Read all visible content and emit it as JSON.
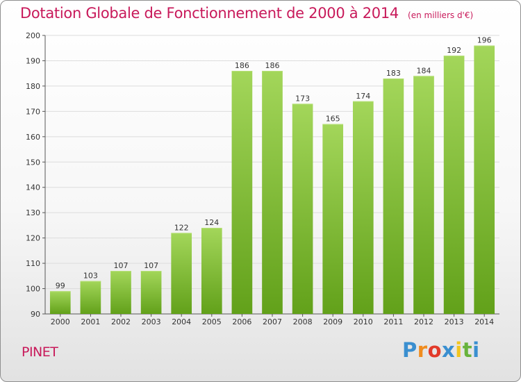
{
  "title": "Dotation Globale de Fonctionnement de 2000 à 2014",
  "unit_note": "(en milliers d'€)",
  "commune": "PINET",
  "logo": {
    "letters": [
      "P",
      "r",
      "o",
      "x",
      "i",
      "t",
      "i"
    ],
    "colors": [
      "#3a8fd0",
      "#f08c1e",
      "#e23a2a",
      "#3a8fd0",
      "#f2c51f",
      "#68b33c",
      "#3a8fd0"
    ]
  },
  "colors": {
    "bar_top": "#a3d65a",
    "bar_bottom": "#62a11a",
    "accent": "#c8195a"
  },
  "chart_data": {
    "type": "bar",
    "categories": [
      "2000",
      "2001",
      "2002",
      "2003",
      "2004",
      "2005",
      "2006",
      "2007",
      "2008",
      "2009",
      "2010",
      "2011",
      "2012",
      "2013",
      "2014"
    ],
    "values": [
      99,
      103,
      107,
      107,
      122,
      124,
      186,
      186,
      173,
      165,
      174,
      183,
      184,
      192,
      196
    ],
    "title": "Dotation Globale de Fonctionnement de 2000 à 2014",
    "xlabel": "",
    "ylabel": "",
    "ylim": [
      90,
      200
    ],
    "yticks": [
      90,
      100,
      110,
      120,
      130,
      140,
      150,
      160,
      170,
      180,
      190,
      200
    ],
    "grid": true,
    "legend": "none",
    "data_labels": true
  }
}
